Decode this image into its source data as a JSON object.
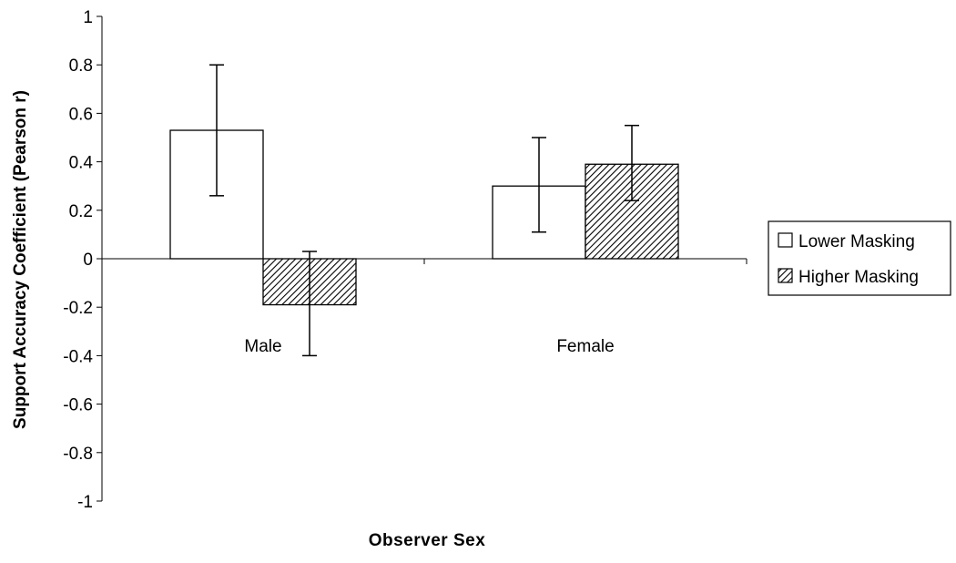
{
  "chart_data": {
    "type": "bar",
    "title": "",
    "xlabel": "Observer Sex",
    "ylabel": "Support Accuracy Coefficient (Pearson r)",
    "categories": [
      "Male",
      "Female"
    ],
    "ylim": [
      -1,
      1
    ],
    "yticks": [
      1,
      0.8,
      0.6,
      0.4,
      0.2,
      0,
      -0.2,
      -0.4,
      -0.6,
      -0.8,
      -1
    ],
    "ytick_labels": [
      "1",
      "0.8",
      "0.6",
      "0.4",
      "0.2",
      "0",
      "-0.2",
      "-0.4",
      "-0.6",
      "-0.8",
      "-1"
    ],
    "series": [
      {
        "name": "Lower Masking",
        "values": [
          0.53,
          0.3
        ],
        "error_low": [
          0.26,
          0.11
        ],
        "error_high": [
          0.8,
          0.5
        ],
        "fill": "white"
      },
      {
        "name": "Higher Masking",
        "values": [
          -0.19,
          0.39
        ],
        "error_low": [
          -0.4,
          0.24
        ],
        "error_high": [
          0.03,
          0.55
        ],
        "fill": "hatched"
      }
    ],
    "legend_position": "right",
    "grid": false,
    "colors": {
      "bar_stroke": "#000000",
      "bar_fill": "#ffffff",
      "hatch": "#000000"
    }
  }
}
